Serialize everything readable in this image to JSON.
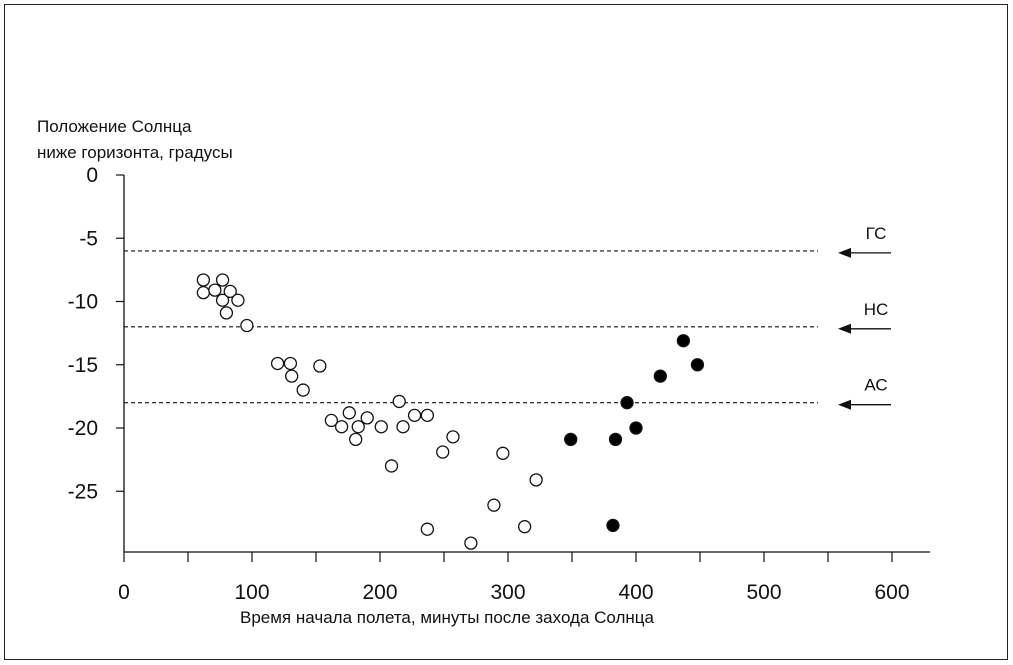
{
  "chart_data": {
    "type": "scatter",
    "ylabel_line1": "Положение Солнца",
    "ylabel_line2": "ниже горизонта, градусы",
    "xlabel": "Время начала полета, минуты после захода Солнца",
    "xlim": [
      0,
      630
    ],
    "ylim": [
      -29.5,
      0
    ],
    "x_ticks": [
      0,
      100,
      200,
      300,
      400,
      500,
      600
    ],
    "y_ticks": [
      0,
      -5,
      -10,
      -15,
      -20,
      -25
    ],
    "grid": false,
    "series": [
      {
        "marker": "open-circle",
        "points": [
          [
            62,
            -8.3
          ],
          [
            62,
            -9.3
          ],
          [
            71,
            -9.1
          ],
          [
            77,
            -8.3
          ],
          [
            77,
            -9.9
          ],
          [
            80,
            -10.9
          ],
          [
            83,
            -9.2
          ],
          [
            89,
            -9.9
          ],
          [
            96,
            -11.9
          ],
          [
            120,
            -14.9
          ],
          [
            130,
            -14.9
          ],
          [
            131,
            -15.9
          ],
          [
            140,
            -17.0
          ],
          [
            153,
            -15.1
          ],
          [
            162,
            -19.4
          ],
          [
            170,
            -19.9
          ],
          [
            176,
            -18.8
          ],
          [
            181,
            -20.9
          ],
          [
            183,
            -19.9
          ],
          [
            190,
            -19.2
          ],
          [
            201,
            -19.9
          ],
          [
            209,
            -23.0
          ],
          [
            215,
            -17.9
          ],
          [
            218,
            -19.9
          ],
          [
            227,
            -19.0
          ],
          [
            237,
            -19.0
          ],
          [
            237,
            -28.0
          ],
          [
            249,
            -21.9
          ],
          [
            257,
            -20.7
          ],
          [
            271,
            -29.1
          ],
          [
            289,
            -26.1
          ],
          [
            296,
            -22.0
          ],
          [
            313,
            -27.8
          ],
          [
            322,
            -24.1
          ]
        ]
      },
      {
        "marker": "filled-circle",
        "points": [
          [
            349,
            -20.9
          ],
          [
            382,
            -27.7
          ],
          [
            384,
            -20.9
          ],
          [
            393,
            -18.0
          ],
          [
            400,
            -20.0
          ],
          [
            419,
            -15.9
          ],
          [
            437,
            -13.1
          ],
          [
            448,
            -15.0
          ]
        ]
      }
    ],
    "reference_lines": [
      {
        "y": -6,
        "label": "ГС"
      },
      {
        "y": -12,
        "label": "НС"
      },
      {
        "y": -18,
        "label": "АС"
      }
    ]
  }
}
